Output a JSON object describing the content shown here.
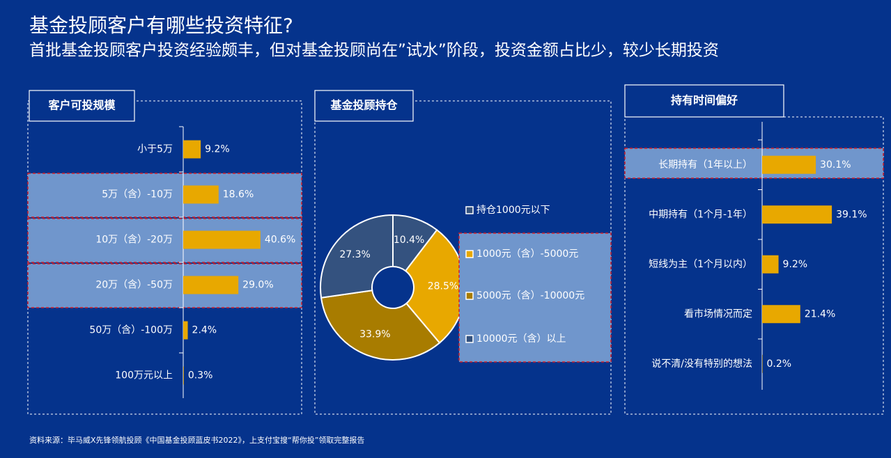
{
  "title": "基金投顾客户有哪些投资特征?",
  "subtitle": "首批基金投顾客户投资经验颇丰，但对基金投顾尚在”试水”阶段，投资金额占比少，较少长期投资",
  "source": "资料来源：毕马威X先锋领航投顾《中国基金投顾蓝皮书2022》，上支付宝搜“帮你投”领取完整报告",
  "chart_data": [
    {
      "type": "hbar",
      "title": "客户可投规模",
      "categories": [
        "小于5万",
        "5万（含）-10万",
        "10万（含）-20万",
        "20万（含）-50万",
        "50万（含）-100万",
        "100万元以上"
      ],
      "values": [
        9.2,
        18.6,
        40.6,
        29.0,
        2.4,
        0.3
      ],
      "value_labels": [
        "9.2%",
        "18.6%",
        "40.6%",
        "29.0%",
        "2.4%",
        "0.3%"
      ],
      "color": "#e8a800",
      "highlight": [
        1,
        2,
        3
      ]
    },
    {
      "type": "donut",
      "title": "基金投顾持仓",
      "categories": [
        "持仓1000元以下",
        "1000元（含）-5000元",
        "5000元（含）-10000元",
        "10000元（含）以上"
      ],
      "values": [
        10.4,
        28.5,
        33.9,
        27.3
      ],
      "value_labels": [
        "10.4%",
        "28.5%",
        "33.9%",
        "27.3%"
      ],
      "colors": [
        "#34527f",
        "#e8a800",
        "#a87c00",
        "#34527f"
      ],
      "highlight": [
        1,
        2,
        3
      ]
    },
    {
      "type": "hbar",
      "title": "持有时间偏好",
      "categories": [
        "长期持有（1年以上）",
        "中期持有（1个月-1年）",
        "短线为主（1个月以内）",
        "看市场情况而定",
        "说不清/没有特别的想法"
      ],
      "values": [
        30.1,
        39.1,
        9.2,
        21.4,
        0.2
      ],
      "value_labels": [
        "30.1%",
        "39.1%",
        "9.2%",
        "21.4%",
        "0.2%"
      ],
      "color": "#e8a800",
      "highlight": [
        0
      ]
    }
  ]
}
